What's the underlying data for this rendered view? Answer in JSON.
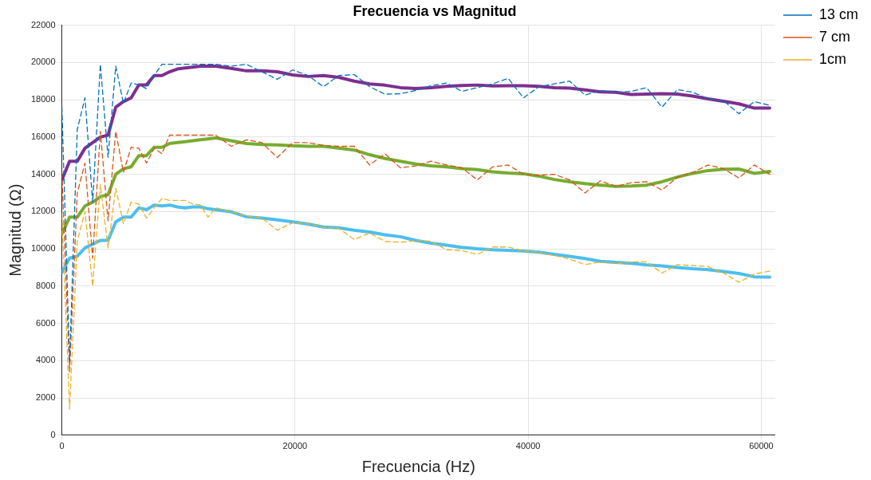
{
  "chart_data": {
    "type": "line",
    "title": "Frecuencia vs Magnitud",
    "xlabel": "Frecuencia (Hz)",
    "ylabel": "Magnitud (Ω)",
    "x": [
      0,
      660,
      1320,
      1980,
      2640,
      3300,
      3960,
      4620,
      5280,
      5940,
      6600,
      7260,
      7920,
      8580,
      9240,
      9900,
      10560,
      11220,
      11880,
      12540,
      13200,
      14520,
      15840,
      17160,
      18480,
      19800,
      21120,
      22440,
      23760,
      25080,
      26400,
      27720,
      29040,
      30360,
      31680,
      33000,
      34320,
      35640,
      36960,
      38280,
      39600,
      40920,
      42240,
      43560,
      44880,
      46200,
      47520,
      48840,
      50160,
      51480,
      52800,
      54120,
      55440,
      56760,
      58080,
      59400,
      60720
    ],
    "xlim": [
      0,
      61200
    ],
    "xticks": [
      0,
      20000,
      40000,
      60000
    ],
    "ylim": [
      0,
      22000
    ],
    "yticks": [
      0,
      2000,
      4000,
      6000,
      8000,
      10000,
      12000,
      14000,
      16000,
      18000,
      20000,
      22000
    ],
    "grid": true,
    "legend": "top right",
    "marker": "none",
    "series": [
      {
        "name": "13 cm",
        "color": "#0072bd",
        "line_style": "dashed",
        "values": [
          17600,
          3900,
          16400,
          18100,
          12500,
          19900,
          14900,
          19800,
          17800,
          18900,
          18800,
          18600,
          19300,
          19900,
          19900,
          19900,
          19900,
          19900,
          19900,
          19900,
          19900,
          19800,
          19900,
          19500,
          19100,
          19600,
          19300,
          18700,
          19300,
          19350,
          18700,
          18300,
          18320,
          18500,
          18750,
          18900,
          18450,
          18650,
          18850,
          19150,
          18100,
          18700,
          18850,
          19000,
          18250,
          18500,
          18400,
          18450,
          18650,
          17600,
          18550,
          18400,
          18050,
          17950,
          17250,
          17900,
          17700
        ]
      },
      {
        "name": "7 cm",
        "color": "#d95319",
        "line_style": "dashed",
        "values": [
          14100,
          3400,
          13000,
          14600,
          9500,
          16300,
          11500,
          16300,
          14100,
          15450,
          15400,
          14600,
          15400,
          15100,
          16100,
          16100,
          16100,
          16100,
          16100,
          16100,
          16100,
          15500,
          15850,
          15700,
          14900,
          15700,
          15700,
          15550,
          15500,
          15500,
          14500,
          15100,
          14350,
          14450,
          14700,
          14500,
          14350,
          13700,
          14400,
          14500,
          14000,
          13950,
          14000,
          13700,
          13000,
          13650,
          13350,
          13550,
          13600,
          13150,
          13850,
          14100,
          14500,
          14300,
          13800,
          14500,
          14000
        ]
      },
      {
        "name": "1cm",
        "color": "#edb120",
        "line_style": "dashed",
        "values": [
          11850,
          1400,
          10400,
          12000,
          8000,
          13450,
          10050,
          13250,
          11350,
          12500,
          12400,
          11650,
          12200,
          12700,
          12600,
          12600,
          12600,
          12400,
          12350,
          11700,
          12200,
          12000,
          11750,
          11650,
          11000,
          11400,
          11350,
          11150,
          11100,
          10500,
          10850,
          10400,
          10350,
          10450,
          10400,
          9950,
          9900,
          9700,
          10100,
          10100,
          9880,
          9800,
          9650,
          9450,
          9150,
          9300,
          9200,
          9300,
          9300,
          8700,
          9150,
          9100,
          9050,
          8700,
          8200,
          8650,
          8800
        ]
      },
      {
        "color": "#7e2f8e",
        "line_style": "solid",
        "values": [
          13700,
          14700,
          14700,
          15400,
          15700,
          16000,
          16100,
          17600,
          17900,
          18100,
          18800,
          18800,
          19300,
          19300,
          19500,
          19650,
          19700,
          19750,
          19800,
          19800,
          19800,
          19680,
          19550,
          19550,
          19500,
          19330,
          19250,
          19300,
          19200,
          19000,
          18850,
          18780,
          18650,
          18600,
          18650,
          18720,
          18760,
          18790,
          18740,
          18750,
          18750,
          18720,
          18650,
          18620,
          18530,
          18420,
          18400,
          18280,
          18300,
          18320,
          18300,
          18200,
          18050,
          17920,
          17780,
          17550,
          17550
        ]
      },
      {
        "color": "#77ac30",
        "line_style": "solid",
        "values": [
          10800,
          11700,
          11700,
          12300,
          12500,
          12800,
          12900,
          14000,
          14300,
          14400,
          15000,
          15000,
          15450,
          15450,
          15650,
          15700,
          15750,
          15800,
          15850,
          15900,
          15950,
          15800,
          15650,
          15600,
          15580,
          15530,
          15500,
          15500,
          15400,
          15300,
          15050,
          14850,
          14700,
          14550,
          14450,
          14400,
          14300,
          14250,
          14130,
          14070,
          14030,
          13900,
          13720,
          13600,
          13500,
          13420,
          13350,
          13370,
          13420,
          13600,
          13850,
          14050,
          14200,
          14270,
          14280,
          14050,
          14150
        ]
      },
      {
        "color": "#4dbeee",
        "line_style": "solid",
        "values": [
          8750,
          9500,
          9600,
          10050,
          10250,
          10450,
          10450,
          11450,
          11700,
          11700,
          12200,
          12100,
          12350,
          12300,
          12350,
          12250,
          12200,
          12250,
          12250,
          12150,
          12100,
          11990,
          11720,
          11650,
          11550,
          11450,
          11330,
          11170,
          11130,
          11000,
          10900,
          10750,
          10650,
          10450,
          10300,
          10200,
          10080,
          10000,
          9950,
          9920,
          9880,
          9820,
          9700,
          9600,
          9480,
          9330,
          9280,
          9220,
          9140,
          9080,
          9000,
          8930,
          8880,
          8780,
          8680,
          8500,
          8480
        ]
      }
    ]
  }
}
